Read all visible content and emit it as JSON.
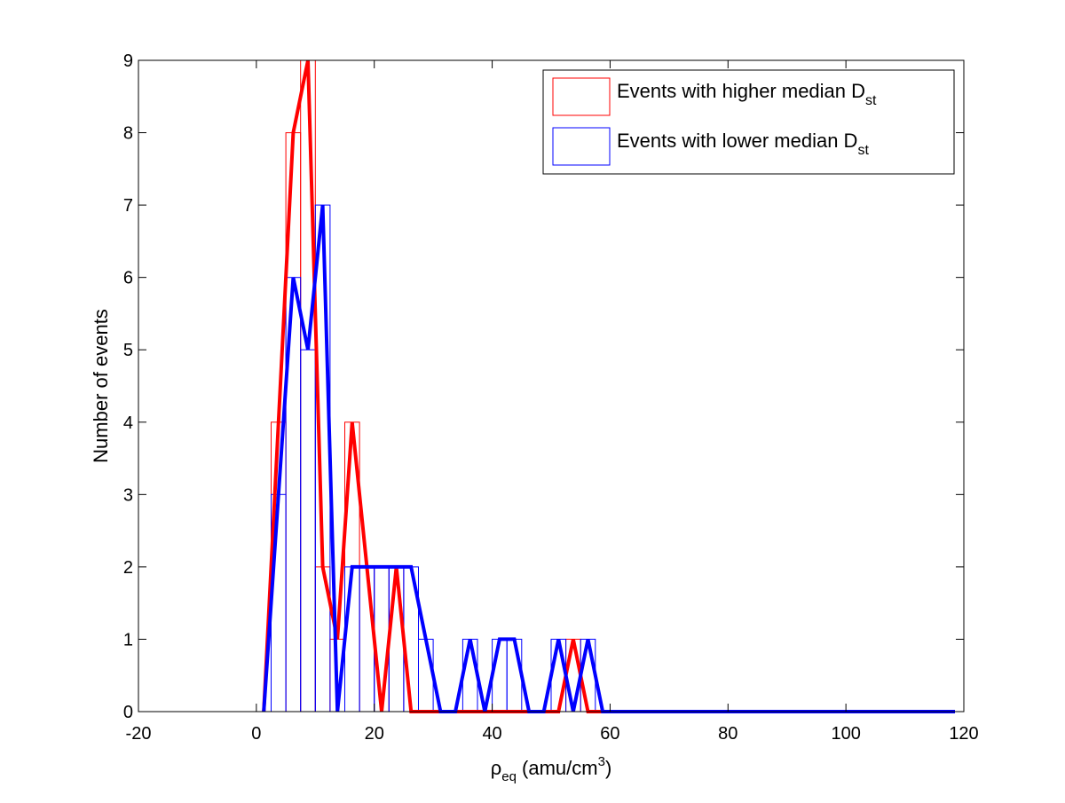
{
  "chart_data": {
    "type": "bar",
    "title": "",
    "xlabel": "ρ",
    "xlabel_sub": "eq",
    "xlabel_rest": " (amu/cm",
    "xlabel_sup": "3",
    "xlabel_close": ")",
    "ylabel": "Number of events",
    "xlim": [
      -20,
      120
    ],
    "ylim": [
      0,
      9
    ],
    "xticks": [
      -20,
      0,
      20,
      40,
      60,
      80,
      100,
      120
    ],
    "yticks": [
      0,
      1,
      2,
      3,
      4,
      5,
      6,
      7,
      8,
      9
    ],
    "bin_width": 2.5,
    "grid": false,
    "legend_position": "top-right",
    "series": [
      {
        "name": "Events with higher median D",
        "name_sub": "st",
        "color": "#ff0000",
        "bin_centers": [
          1.25,
          3.75,
          6.25,
          8.75,
          11.25,
          13.75,
          16.25,
          18.75,
          21.25,
          23.75,
          26.25,
          28.75,
          31.25,
          33.75,
          36.25,
          38.75,
          41.25,
          43.75,
          46.25,
          48.75,
          51.25,
          53.75,
          56.25,
          58.75,
          118.5
        ],
        "counts": [
          0,
          4,
          8,
          9,
          2,
          1,
          4,
          2,
          0,
          2,
          0,
          0,
          0,
          0,
          0,
          0,
          0,
          0,
          0,
          0,
          0,
          1,
          0,
          0,
          0
        ]
      },
      {
        "name": "Events with lower median D",
        "name_sub": "st",
        "color": "#0000ff",
        "bin_centers": [
          1.25,
          3.75,
          6.25,
          8.75,
          11.25,
          13.75,
          16.25,
          18.75,
          21.25,
          23.75,
          26.25,
          28.75,
          31.25,
          33.75,
          36.25,
          38.75,
          41.25,
          43.75,
          46.25,
          48.75,
          51.25,
          53.75,
          56.25,
          58.75,
          118.5
        ],
        "counts": [
          0,
          3,
          6,
          5,
          7,
          0,
          2,
          2,
          2,
          2,
          2,
          1,
          0,
          0,
          1,
          0,
          1,
          1,
          0,
          0,
          1,
          0,
          1,
          0,
          0
        ]
      }
    ]
  }
}
